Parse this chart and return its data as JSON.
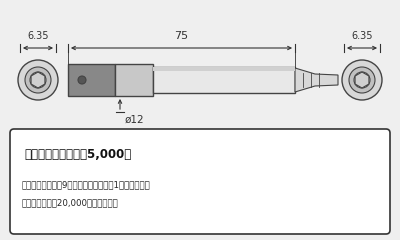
{
  "bg_color": "#efefef",
  "dim_color": "#333333",
  "body_light": "#e8e8e8",
  "body_mid": "#c0c0c0",
  "body_dark": "#888888",
  "body_outline": "#444444",
  "dim_left": "6.35",
  "dim_center": "75",
  "dim_right": "6.35",
  "dim_dia": "ø12",
  "box_text_bold": "使用可能回数　：絉5,000回",
  "box_text_sub1": "（締め付けの時に9クリックした時点で1回とカウント",
  "box_text_sub2": "する。耗久テス20,000回クリア。）"
}
